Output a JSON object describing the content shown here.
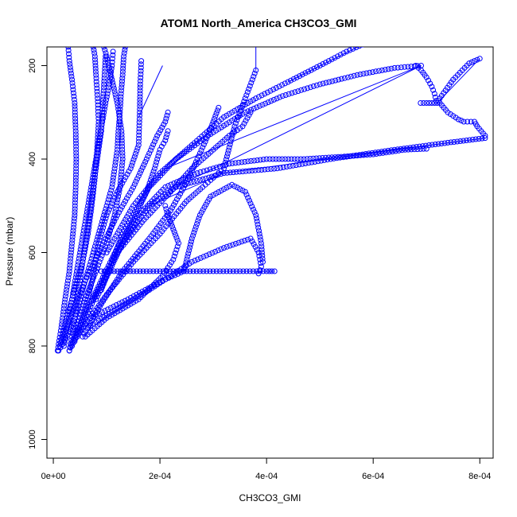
{
  "chart_data": {
    "type": "scatter",
    "title": "ATOM1 North_America CH3CO3_GMI",
    "xlabel": "CH3CO3_GMI",
    "ylabel": "Pressure (mbar)",
    "xlim": [
      -1.2e-05,
      0.000825
    ],
    "ylim": [
      1040,
      160
    ],
    "y_reversed": true,
    "x_ticks": [
      0,
      0.0002,
      0.0004,
      0.0006,
      0.0008
    ],
    "x_tick_labels": [
      "0e+00",
      "2e-04",
      "4e-04",
      "6e-04",
      "8e-04"
    ],
    "y_ticks": [
      200,
      400,
      600,
      800,
      1000
    ],
    "y_tick_labels": [
      "200",
      "400",
      "600",
      "800",
      "1000"
    ],
    "grid": false,
    "marker": "open-circle",
    "series_color": "#0000ff",
    "series": [
      {
        "points": [
          [
            8e-06,
            810
          ],
          [
            1.5e-05,
            760
          ],
          [
            2.2e-05,
            700
          ],
          [
            3e-05,
            640
          ],
          [
            3.5e-05,
            580
          ],
          [
            4e-05,
            520
          ],
          [
            4.2e-05,
            460
          ],
          [
            4.3e-05,
            400
          ],
          [
            4.2e-05,
            340
          ],
          [
            4e-05,
            280
          ],
          [
            3.5e-05,
            230
          ],
          [
            3e-05,
            190
          ],
          [
            2.8e-05,
            160
          ]
        ]
      },
      {
        "points": [
          [
            1.2e-05,
            800
          ],
          [
            2.5e-05,
            740
          ],
          [
            4e-05,
            680
          ],
          [
            5.5e-05,
            620
          ],
          [
            6.5e-05,
            560
          ],
          [
            7.2e-05,
            500
          ],
          [
            7.8e-05,
            440
          ],
          [
            8.2e-05,
            380
          ],
          [
            8.5e-05,
            320
          ],
          [
            8.3e-05,
            270
          ],
          [
            8e-05,
            220
          ],
          [
            7.8e-05,
            180
          ],
          [
            7.5e-05,
            160
          ]
        ]
      },
      {
        "points": [
          [
            3e-05,
            810
          ],
          [
            4.5e-05,
            760
          ],
          [
            6e-05,
            700
          ],
          [
            8e-05,
            640
          ],
          [
            0.0001,
            580
          ],
          [
            0.000115,
            520
          ],
          [
            0.000125,
            460
          ],
          [
            0.00013,
            400
          ],
          [
            0.000128,
            340
          ],
          [
            0.00012,
            280
          ],
          [
            0.00011,
            230
          ],
          [
            0.0001,
            180
          ],
          [
            9.5e-05,
            160
          ]
        ]
      },
      {
        "points": [
          [
            3.5e-05,
            800
          ],
          [
            6e-05,
            730
          ],
          [
            9e-05,
            660
          ],
          [
            0.00012,
            590
          ],
          [
            0.00015,
            530
          ],
          [
            0.000175,
            470
          ],
          [
            0.00019,
            420
          ],
          [
            0.0002,
            380
          ],
          [
            0.00021,
            360
          ],
          [
            0.000215,
            340
          ]
        ]
      },
      {
        "points": [
          [
            4e-05,
            790
          ],
          [
            6e-05,
            720
          ],
          [
            7.5e-05,
            650
          ],
          [
            8.5e-05,
            580
          ],
          [
            0.0001,
            520
          ],
          [
            0.00012,
            470
          ],
          [
            0.000145,
            420
          ],
          [
            0.00016,
            370
          ],
          [
            0.000162,
            300
          ],
          [
            0.000163,
            240
          ],
          [
            0.000165,
            190
          ]
        ]
      },
      {
        "points": [
          [
            9e-05,
            640
          ],
          [
            0.00015,
            640
          ],
          [
            0.0002,
            640
          ],
          [
            0.00025,
            640
          ],
          [
            0.0003,
            640
          ],
          [
            0.00035,
            640
          ],
          [
            0.0004,
            640
          ],
          [
            0.000415,
            640
          ]
        ]
      },
      {
        "points": [
          [
            4.5e-05,
            780
          ],
          [
            8e-05,
            690
          ],
          [
            0.00012,
            600
          ],
          [
            0.00017,
            530
          ],
          [
            0.00022,
            470
          ],
          [
            0.00026,
            420
          ],
          [
            0.0003,
            380
          ],
          [
            0.00033,
            350
          ],
          [
            0.000355,
            330
          ],
          [
            0.00037,
            300
          ]
        ]
      },
      {
        "points": [
          [
            5e-05,
            770
          ],
          [
            0.0001,
            690
          ],
          [
            0.00015,
            620
          ],
          [
            0.0002,
            560
          ],
          [
            0.00025,
            490
          ],
          [
            0.00028,
            460
          ],
          [
            0.0003,
            440
          ],
          [
            0.00032,
            420
          ],
          [
            0.00034,
            330
          ],
          [
            0.00036,
            270
          ],
          [
            0.00038,
            210
          ]
        ]
      },
      {
        "points": [
          [
            5.5e-05,
            780
          ],
          [
            9e-05,
            710
          ],
          [
            0.00013,
            640
          ],
          [
            0.00018,
            570
          ],
          [
            0.00022,
            510
          ],
          [
            0.00025,
            450
          ],
          [
            0.00027,
            400
          ],
          [
            0.00029,
            350
          ],
          [
            0.0003,
            320
          ],
          [
            0.00031,
            290
          ]
        ]
      },
      {
        "points": [
          [
            6e-05,
            780
          ],
          [
            0.0001,
            740
          ],
          [
            0.00016,
            700
          ],
          [
            0.000205,
            650
          ],
          [
            0.000225,
            615
          ],
          [
            0.000235,
            580
          ],
          [
            0.000225,
            550
          ],
          [
            0.000215,
            520
          ],
          [
            0.00021,
            500
          ]
        ]
      },
      {
        "points": [
          [
            6.5e-05,
            760
          ],
          [
            0.00012,
            720
          ],
          [
            0.00018,
            680
          ],
          [
            0.00026,
            620
          ],
          [
            0.00032,
            590
          ],
          [
            0.00037,
            570
          ],
          [
            0.000385,
            600
          ],
          [
            0.00039,
            630
          ],
          [
            0.000385,
            645
          ]
        ]
      },
      {
        "points": [
          [
            7e-05,
            740
          ],
          [
            0.00014,
            700
          ],
          [
            0.000205,
            660
          ],
          [
            0.000245,
            640
          ],
          [
            0.00026,
            570
          ],
          [
            0.000275,
            520
          ],
          [
            0.000295,
            480
          ],
          [
            0.000335,
            455
          ],
          [
            0.00036,
            470
          ],
          [
            0.00038,
            520
          ],
          [
            0.00039,
            580
          ],
          [
            0.000393,
            620
          ]
        ]
      },
      {
        "points": [
          [
            7.5e-05,
            700
          ],
          [
            0.00012,
            600
          ],
          [
            0.00016,
            520
          ],
          [
            0.00021,
            460
          ],
          [
            0.00027,
            430
          ],
          [
            0.00033,
            410
          ],
          [
            0.0004,
            400
          ],
          [
            0.00047,
            400
          ],
          [
            0.00054,
            395
          ],
          [
            0.0006,
            390
          ],
          [
            0.00066,
            380
          ],
          [
            0.0007,
            378
          ]
        ]
      },
      {
        "points": [
          [
            8e-05,
            700
          ],
          [
            0.00013,
            580
          ],
          [
            0.00018,
            500
          ],
          [
            0.00023,
            460
          ],
          [
            0.00032,
            430
          ],
          [
            0.00042,
            420
          ],
          [
            0.00052,
            400
          ],
          [
            0.00064,
            380
          ],
          [
            0.00074,
            365
          ],
          [
            0.00081,
            355
          ]
        ]
      },
      {
        "points": [
          [
            9e-05,
            680
          ],
          [
            0.00013,
            560
          ],
          [
            0.00018,
            460
          ],
          [
            0.00023,
            400
          ],
          [
            0.00029,
            350
          ],
          [
            0.00036,
            300
          ],
          [
            0.00043,
            265
          ],
          [
            0.0005,
            240
          ],
          [
            0.00057,
            220
          ],
          [
            0.00064,
            205
          ],
          [
            0.00069,
            200
          ]
        ]
      },
      {
        "points": [
          [
            0.0001,
            600
          ],
          [
            0.00015,
            500
          ],
          [
            0.0002,
            430
          ],
          [
            0.00026,
            370
          ],
          [
            0.00032,
            310
          ],
          [
            0.00038,
            270
          ],
          [
            0.00044,
            235
          ],
          [
            0.0005,
            200
          ],
          [
            0.00055,
            170
          ],
          [
            0.00058,
            155
          ]
        ]
      },
      {
        "points": [
          [
            0.000689,
            280
          ],
          [
            0.0007,
            280
          ],
          [
            0.00071,
            280
          ],
          [
            0.00072,
            280
          ],
          [
            0.000725,
            270
          ],
          [
            0.00075,
            230
          ],
          [
            0.00078,
            195
          ],
          [
            0.0008,
            185
          ]
        ]
      },
      {
        "points": [
          [
            0.000725,
            280
          ],
          [
            0.00074,
            300
          ],
          [
            0.00076,
            315
          ],
          [
            0.00077,
            320
          ],
          [
            0.00079,
            320
          ],
          [
            0.000795,
            330
          ],
          [
            0.00081,
            350
          ]
        ]
      },
      {
        "points": [
          [
            0.00068,
            200
          ],
          [
            0.00069,
            210
          ],
          [
            0.0007,
            225
          ],
          [
            0.00071,
            245
          ],
          [
            0.000715,
            260
          ],
          [
            0.000718,
            275
          ]
        ]
      },
      {
        "points": [
          [
            1e-05,
            810
          ],
          [
            2e-05,
            790
          ],
          [
            3e-05,
            770
          ],
          [
            4e-05,
            740
          ],
          [
            5e-05,
            700
          ],
          [
            6e-05,
            660
          ],
          [
            7e-05,
            620
          ],
          [
            8e-05,
            580
          ],
          [
            9e-05,
            540
          ],
          [
            0.0001,
            500
          ],
          [
            0.00011,
            460
          ],
          [
            0.000115,
            420
          ],
          [
            0.00012,
            380
          ],
          [
            0.000122,
            340
          ],
          [
            0.000125,
            300
          ],
          [
            0.000127,
            260
          ],
          [
            0.00013,
            220
          ],
          [
            0.000132,
            180
          ],
          [
            0.000135,
            160
          ]
        ]
      },
      {
        "points": [
          [
            3e-05,
            810
          ],
          [
            3.5e-05,
            780
          ],
          [
            4e-05,
            740
          ],
          [
            4.5e-05,
            700
          ],
          [
            5e-05,
            660
          ],
          [
            5.5e-05,
            620
          ],
          [
            6e-05,
            580
          ],
          [
            6.5e-05,
            540
          ],
          [
            7e-05,
            500
          ],
          [
            7.5e-05,
            460
          ],
          [
            8e-05,
            420
          ],
          [
            8.5e-05,
            380
          ],
          [
            9e-05,
            340
          ],
          [
            9.2e-05,
            300
          ],
          [
            9.4e-05,
            260
          ],
          [
            9.6e-05,
            220
          ],
          [
            9.8e-05,
            180
          ]
        ]
      },
      {
        "points": [
          [
            2e-05,
            800
          ],
          [
            2.6e-05,
            760
          ],
          [
            3.2e-05,
            720
          ],
          [
            3.8e-05,
            680
          ],
          [
            4.4e-05,
            640
          ],
          [
            5e-05,
            600
          ],
          [
            5.6e-05,
            560
          ],
          [
            6.2e-05,
            520
          ],
          [
            6.8e-05,
            480
          ],
          [
            7.4e-05,
            440
          ],
          [
            8e-05,
            400
          ],
          [
            8.6e-05,
            360
          ],
          [
            9.2e-05,
            320
          ],
          [
            9.8e-05,
            280
          ],
          [
            0.000105,
            240
          ],
          [
            0.00011,
            200
          ],
          [
            0.000112,
            170
          ]
        ]
      },
      {
        "points": [
          [
            1.6e-05,
            790
          ],
          [
            3.5e-05,
            730
          ],
          [
            6e-05,
            660
          ],
          [
            9e-05,
            590
          ],
          [
            0.00012,
            520
          ],
          [
            0.00015,
            460
          ],
          [
            0.000175,
            400
          ],
          [
            0.000195,
            350
          ],
          [
            0.00021,
            320
          ],
          [
            0.000215,
            300
          ]
        ]
      }
    ],
    "connector_lines": [
      {
        "points": [
          [
            9e-05,
            640
          ],
          [
            0.000415,
            640
          ]
        ]
      },
      {
        "points": [
          [
            0.00021,
            420
          ],
          [
            0.00069,
            200
          ]
        ]
      },
      {
        "points": [
          [
            0.00016,
            310
          ],
          [
            0.000205,
            200
          ]
        ]
      },
      {
        "points": [
          [
            0.00018,
            500
          ],
          [
            0.00032,
            430
          ],
          [
            0.00064,
            380
          ],
          [
            0.00081,
            355
          ]
        ]
      },
      {
        "points": [
          [
            0.00044,
            235
          ],
          [
            0.00058,
            155
          ]
        ]
      },
      {
        "points": [
          [
            0.00038,
            210
          ],
          [
            0.00038,
            160
          ]
        ]
      },
      {
        "points": [
          [
            0.0008,
            185
          ],
          [
            0.00072,
            280
          ]
        ]
      },
      {
        "points": [
          [
            0.00023,
            460
          ],
          [
            0.00069,
            200
          ]
        ]
      }
    ]
  }
}
